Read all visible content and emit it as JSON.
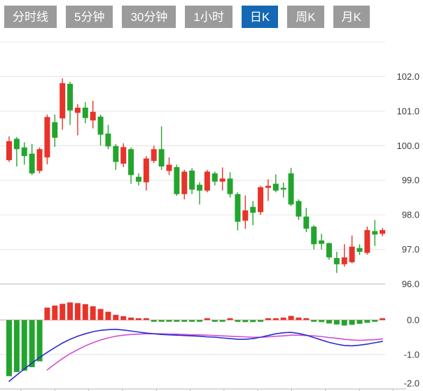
{
  "tabs": {
    "active_index": 4,
    "items": [
      {
        "label": "分时线"
      },
      {
        "label": "5分钟"
      },
      {
        "label": "30分钟"
      },
      {
        "label": "1小时"
      },
      {
        "label": "日K"
      },
      {
        "label": "周K"
      },
      {
        "label": "月K"
      }
    ]
  },
  "colors": {
    "up_red": "#e8332a",
    "down_green": "#23a52d",
    "dif_line_blue": "#2b2bd0",
    "dea_line_magenta": "#cf4fd2",
    "grid": "#e4e4e4",
    "axis": "#c4c4c4",
    "zero_line": "#dda3a3",
    "label_text": "#3a3a3a",
    "tab_bg": "#9b9b9b",
    "tab_active_bg": "#1568b3",
    "tab_text": "#ffffff"
  },
  "chart_data": {
    "type": "candlestick",
    "title": "",
    "legend_position": "none",
    "grid": "horizontal-only",
    "main_panel": {
      "ylabels": [
        "102.0",
        "101.0",
        "100.0",
        "99.0",
        "98.0",
        "97.0",
        "96.0"
      ],
      "ylabel_values": [
        102,
        101,
        100,
        99,
        98,
        97,
        96
      ],
      "ylim": [
        95.9,
        103.1
      ],
      "candles_ohlc": [
        [
          99.58,
          100.27,
          99.53,
          100.13
        ],
        [
          100.2,
          100.25,
          99.4,
          99.9
        ],
        [
          99.95,
          100.1,
          99.45,
          99.7
        ],
        [
          99.77,
          100.05,
          99.15,
          99.2
        ],
        [
          99.27,
          99.95,
          99.2,
          99.9
        ],
        [
          99.66,
          100.9,
          99.46,
          100.83
        ],
        [
          100.68,
          100.9,
          99.97,
          100.23
        ],
        [
          100.79,
          101.95,
          100.46,
          101.81
        ],
        [
          101.79,
          101.85,
          100.6,
          101.02
        ],
        [
          100.95,
          101.2,
          100.3,
          101.1
        ],
        [
          101.1,
          101.26,
          100.65,
          100.8
        ],
        [
          100.73,
          101.3,
          100.5,
          100.98
        ],
        [
          100.84,
          100.9,
          100.0,
          100.32
        ],
        [
          100.35,
          100.6,
          99.9,
          99.98
        ],
        [
          99.99,
          100.05,
          99.3,
          99.53
        ],
        [
          99.48,
          100.07,
          99.38,
          99.96
        ],
        [
          99.9,
          99.95,
          98.9,
          99.15
        ],
        [
          99.1,
          99.2,
          98.85,
          98.96
        ],
        [
          98.94,
          99.7,
          98.7,
          99.63
        ],
        [
          99.56,
          100.0,
          99.5,
          99.9
        ],
        [
          99.9,
          100.56,
          99.3,
          99.4
        ],
        [
          99.27,
          99.66,
          99.15,
          99.45
        ],
        [
          99.38,
          99.45,
          98.55,
          98.6
        ],
        [
          98.6,
          99.3,
          98.45,
          99.25
        ],
        [
          99.28,
          99.35,
          98.6,
          98.73
        ],
        [
          98.87,
          98.95,
          98.3,
          98.7
        ],
        [
          98.7,
          99.3,
          98.65,
          99.25
        ],
        [
          99.2,
          99.25,
          98.85,
          98.96
        ],
        [
          98.96,
          99.37,
          98.7,
          99.05
        ],
        [
          99.05,
          99.23,
          98.5,
          98.6
        ],
        [
          98.6,
          98.65,
          97.55,
          97.8
        ],
        [
          97.83,
          98.56,
          97.6,
          98.13
        ],
        [
          98.23,
          98.4,
          97.7,
          98.06
        ],
        [
          98.08,
          98.84,
          98.0,
          98.8
        ],
        [
          98.78,
          99.03,
          98.4,
          98.84
        ],
        [
          98.9,
          99.17,
          98.65,
          98.7
        ],
        [
          98.78,
          98.93,
          98.5,
          98.73
        ],
        [
          99.2,
          99.36,
          98.25,
          98.3
        ],
        [
          98.4,
          98.45,
          97.85,
          97.95
        ],
        [
          97.95,
          98.2,
          97.5,
          97.6
        ],
        [
          97.66,
          97.7,
          97.0,
          97.15
        ],
        [
          97.26,
          97.45,
          97.0,
          97.16
        ],
        [
          97.18,
          97.2,
          96.7,
          96.77
        ],
        [
          96.75,
          96.93,
          96.32,
          96.57
        ],
        [
          96.57,
          97.15,
          96.5,
          96.77
        ],
        [
          96.63,
          97.4,
          96.6,
          97.08
        ],
        [
          97.04,
          97.15,
          96.84,
          96.93
        ],
        [
          96.9,
          97.66,
          96.85,
          97.56
        ],
        [
          97.53,
          97.85,
          97.1,
          97.43
        ],
        [
          97.45,
          97.62,
          97.38,
          97.56
        ]
      ]
    },
    "macd_panel": {
      "ylabels": [
        "0.0",
        "-1.0",
        "-2.0"
      ],
      "ylabel_values": [
        0,
        -1,
        -2
      ],
      "ylim": [
        -2.05,
        0.55
      ],
      "histogram": [
        -1.63,
        -1.51,
        -1.47,
        -1.37,
        -1.2,
        0.36,
        0.42,
        0.47,
        0.51,
        0.49,
        0.46,
        0.4,
        0.32,
        0.24,
        0.15,
        0.11,
        0.07,
        0.04,
        0.02,
        -0.03,
        -0.05,
        -0.05,
        -0.04,
        -0.02,
        -0.03,
        -0.03,
        0.03,
        -0.03,
        -0.02,
        0.04,
        -0.05,
        -0.06,
        -0.06,
        -0.05,
        0.02,
        0.05,
        0.07,
        0.12,
        0.07,
        0.04,
        -0.04,
        -0.06,
        -0.1,
        -0.13,
        -0.16,
        -0.14,
        -0.11,
        -0.08,
        -0.05,
        0.04
      ],
      "dif": [
        -1.78,
        -1.6,
        -1.42,
        -1.25,
        -1.09,
        -0.94,
        -0.8,
        -0.67,
        -0.56,
        -0.47,
        -0.4,
        -0.34,
        -0.3,
        -0.28,
        -0.27,
        -0.29,
        -0.32,
        -0.35,
        -0.38,
        -0.4,
        -0.42,
        -0.43,
        -0.44,
        -0.45,
        -0.46,
        -0.47,
        -0.49,
        -0.5,
        -0.52,
        -0.54,
        -0.56,
        -0.56,
        -0.54,
        -0.5,
        -0.45,
        -0.4,
        -0.37,
        -0.36,
        -0.39,
        -0.44,
        -0.51,
        -0.58,
        -0.65,
        -0.7,
        -0.74,
        -0.75,
        -0.73,
        -0.7,
        -0.66,
        -0.62
      ],
      "dea": [
        null,
        null,
        null,
        null,
        null,
        -1.45,
        -1.28,
        -1.12,
        -0.98,
        -0.86,
        -0.75,
        -0.66,
        -0.58,
        -0.52,
        -0.47,
        -0.44,
        -0.42,
        -0.41,
        -0.4,
        -0.4,
        -0.4,
        -0.41,
        -0.41,
        -0.42,
        -0.43,
        -0.43,
        -0.44,
        -0.45,
        -0.46,
        -0.47,
        -0.48,
        -0.49,
        -0.5,
        -0.5,
        -0.49,
        -0.47,
        -0.46,
        -0.44,
        -0.44,
        -0.45,
        -0.46,
        -0.48,
        -0.51,
        -0.53,
        -0.56,
        -0.58,
        -0.59,
        -0.58,
        -0.57,
        -0.55
      ]
    }
  }
}
